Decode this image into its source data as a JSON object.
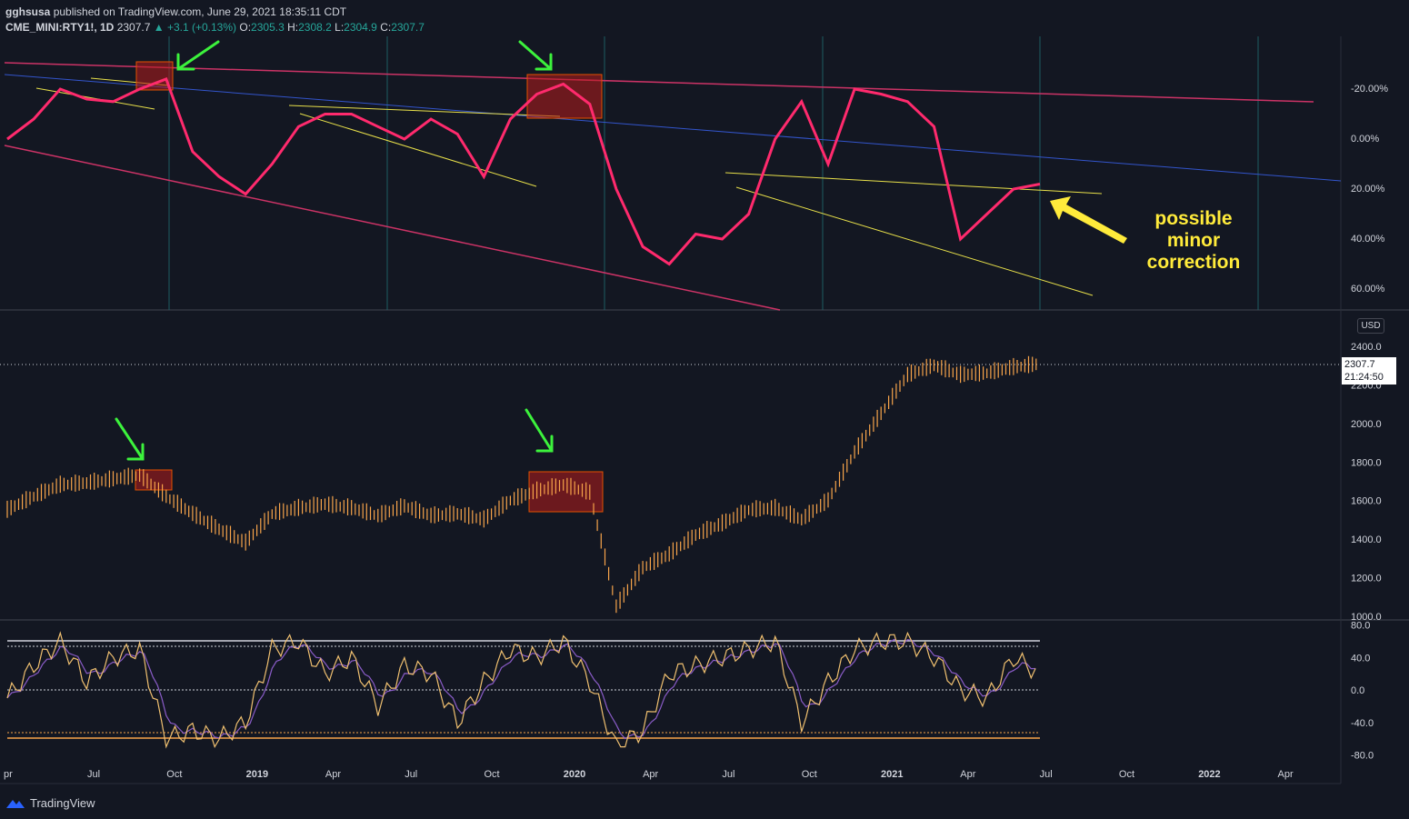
{
  "header": {
    "author": "gghsusa",
    "published": "published on TradingView.com, June 29, 2021 18:35:11 CDT",
    "symbol": "CME_MINI:RTY1!, 1D",
    "last": "2307.7",
    "change": "+3.1 (+0.13%)",
    "o_label": "O:",
    "o_value": "2305.3",
    "h_label": "H:",
    "h_value": "2308.2",
    "l_label": "L:",
    "l_value": "2304.9",
    "c_label": "C:",
    "c_value": "2307.7"
  },
  "price_scale": {
    "currency": "USD",
    "last_price": "2307.7",
    "countdown": "21:24:50"
  },
  "annotation": {
    "line1": "possible",
    "line2": "minor",
    "line3": "correction"
  },
  "footer": {
    "brand": "TradingView"
  },
  "colors": {
    "background": "#131722",
    "indicator_line": "#ff2a6d",
    "price_candles": "#f7a44a",
    "channel_line": "#cc3366",
    "mid_line": "#3355cc",
    "trend_line": "#e8e04a",
    "arrow_green": "#3cf23c",
    "arrow_yellow": "#ffeb3b",
    "highlight_box": "#b71c1c",
    "osc_fast": "#f0c070",
    "osc_slow": "#8a5cc8"
  },
  "chart_data": [
    {
      "type": "line",
      "name": "upper-pane-indicator",
      "x": [
        "2018-04",
        "2018-05",
        "2018-06",
        "2018-07",
        "2018-08",
        "2018-09",
        "2018-10",
        "2018-11",
        "2018-12",
        "2019-01",
        "2019-02",
        "2019-03",
        "2019-04",
        "2019-05",
        "2019-06",
        "2019-07",
        "2019-08",
        "2019-09",
        "2019-10",
        "2019-11",
        "2019-12",
        "2020-01",
        "2020-02",
        "2020-03",
        "2020-04",
        "2020-05",
        "2020-06",
        "2020-07",
        "2020-08",
        "2020-09",
        "2020-10",
        "2020-11",
        "2020-12",
        "2021-01",
        "2021-02",
        "2021-03",
        "2021-04",
        "2021-05",
        "2021-06",
        "2021-07"
      ],
      "values": [
        0,
        -8,
        -20,
        -16,
        -15,
        -20,
        -24,
        5,
        15,
        22,
        10,
        -5,
        -10,
        -10,
        -5,
        0,
        -8,
        -2,
        15,
        -8,
        -18,
        -22,
        -14,
        20,
        43,
        50,
        38,
        40,
        30,
        0,
        -15,
        10,
        -20,
        -18,
        -15,
        -5,
        40,
        30,
        20,
        18
      ],
      "tick_labels": [
        "-20.00%",
        "0.00%",
        "20.00%",
        "40.00%",
        "60.00%"
      ]
    },
    {
      "type": "line",
      "name": "RTY1! daily price",
      "x": [
        "2018-04",
        "2018-05",
        "2018-06",
        "2018-07",
        "2018-08",
        "2018-09",
        "2018-10",
        "2018-11",
        "2018-12",
        "2019-01",
        "2019-02",
        "2019-03",
        "2019-04",
        "2019-05",
        "2019-06",
        "2019-07",
        "2019-08",
        "2019-09",
        "2019-10",
        "2019-11",
        "2019-12",
        "2020-01",
        "2020-02",
        "2020-03",
        "2020-04",
        "2020-05",
        "2020-06",
        "2020-07",
        "2020-08",
        "2020-09",
        "2020-10",
        "2020-11",
        "2020-12",
        "2021-01",
        "2021-02",
        "2021-03",
        "2021-04",
        "2021-05",
        "2021-06",
        "2021-07"
      ],
      "values": [
        1550,
        1620,
        1680,
        1690,
        1710,
        1730,
        1620,
        1530,
        1450,
        1380,
        1530,
        1560,
        1580,
        1560,
        1520,
        1570,
        1520,
        1530,
        1500,
        1600,
        1650,
        1680,
        1640,
        1050,
        1250,
        1320,
        1420,
        1480,
        1550,
        1560,
        1500,
        1600,
        1850,
        2050,
        2250,
        2300,
        2250,
        2260,
        2290,
        2307.7
      ],
      "ylim": [
        1000,
        2400
      ],
      "tick_labels": [
        "2400.0",
        "2200.0",
        "2000.0",
        "1800.0",
        "1600.0",
        "1400.0",
        "1200.0",
        "1000.0"
      ]
    },
    {
      "type": "line",
      "name": "oscillator",
      "x": [
        "2018-04",
        "2018-05",
        "2018-06",
        "2018-07",
        "2018-08",
        "2018-09",
        "2018-10",
        "2018-11",
        "2018-12",
        "2019-01",
        "2019-02",
        "2019-03",
        "2019-04",
        "2019-05",
        "2019-06",
        "2019-07",
        "2019-08",
        "2019-09",
        "2019-10",
        "2019-11",
        "2019-12",
        "2020-01",
        "2020-02",
        "2020-03",
        "2020-04",
        "2020-05",
        "2020-06",
        "2020-07",
        "2020-08",
        "2020-09",
        "2020-10",
        "2020-11",
        "2020-12",
        "2021-01",
        "2021-02",
        "2021-03",
        "2021-04",
        "2021-05",
        "2021-06",
        "2021-07"
      ],
      "values": [
        -10,
        30,
        60,
        10,
        40,
        50,
        -60,
        -50,
        -60,
        -40,
        50,
        60,
        20,
        40,
        -20,
        30,
        20,
        -40,
        10,
        50,
        40,
        60,
        10,
        -70,
        -50,
        20,
        30,
        40,
        50,
        60,
        -40,
        10,
        50,
        60,
        60,
        40,
        0,
        -10,
        40,
        20
      ],
      "ylim": [
        -80,
        80
      ],
      "tick_labels": [
        "80.0",
        "40.0",
        "0.0",
        "-40.0",
        "-80.0"
      ]
    }
  ],
  "x_axis": {
    "labels": [
      "pr",
      "Jul",
      "Oct",
      "2019",
      "Apr",
      "Jul",
      "Oct",
      "2020",
      "Apr",
      "Jul",
      "Oct",
      "2021",
      "Apr",
      "Jul",
      "Oct",
      "2022",
      "Apr"
    ]
  }
}
